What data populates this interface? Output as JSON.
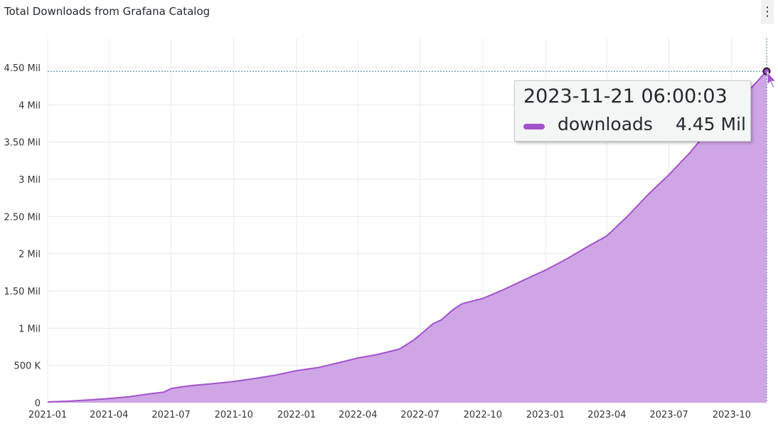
{
  "panel": {
    "title": "Total Downloads from Grafana Catalog",
    "menu_icon": "vertical-ellipsis-icon"
  },
  "tooltip": {
    "timestamp": "2023-11-21 06:00:03",
    "series_name": "downloads",
    "value_label": "4.45 Mil"
  },
  "colors": {
    "series": "#a352cc",
    "fill": "#cfa5e6",
    "grid": "#e9eaeb",
    "crosshair": "#3a7d8c"
  },
  "chart_data": {
    "type": "area",
    "title": "Total Downloads from Grafana Catalog",
    "xlabel": "",
    "ylabel": "",
    "x_ticks": [
      "2021-01",
      "2021-04",
      "2021-07",
      "2021-10",
      "2022-01",
      "2022-04",
      "2022-07",
      "2022-10",
      "2023-01",
      "2023-04",
      "2023-07",
      "2023-10"
    ],
    "y_ticks": [
      {
        "value": 0,
        "label": "0"
      },
      {
        "value": 500000,
        "label": "500 K"
      },
      {
        "value": 1000000,
        "label": "1 Mil"
      },
      {
        "value": 1500000,
        "label": "1.50 Mil"
      },
      {
        "value": 2000000,
        "label": "2 Mil"
      },
      {
        "value": 2500000,
        "label": "2.50 Mil"
      },
      {
        "value": 3000000,
        "label": "3 Mil"
      },
      {
        "value": 3500000,
        "label": "3.50 Mil"
      },
      {
        "value": 4000000,
        "label": "4 Mil"
      },
      {
        "value": 4500000,
        "label": "4.50 Mil"
      }
    ],
    "ylim": [
      0,
      4500000
    ],
    "xlim": [
      "2021-01-01",
      "2023-11-21"
    ],
    "grid": true,
    "series": [
      {
        "name": "downloads",
        "points": [
          [
            "2021-01-01",
            10000
          ],
          [
            "2021-02-01",
            20000
          ],
          [
            "2021-03-01",
            35000
          ],
          [
            "2021-04-01",
            55000
          ],
          [
            "2021-05-01",
            80000
          ],
          [
            "2021-06-01",
            120000
          ],
          [
            "2021-06-20",
            140000
          ],
          [
            "2021-07-01",
            190000
          ],
          [
            "2021-07-15",
            210000
          ],
          [
            "2021-08-01",
            230000
          ],
          [
            "2021-09-01",
            255000
          ],
          [
            "2021-10-01",
            285000
          ],
          [
            "2021-11-01",
            325000
          ],
          [
            "2021-12-01",
            370000
          ],
          [
            "2022-01-01",
            430000
          ],
          [
            "2022-02-01",
            470000
          ],
          [
            "2022-03-01",
            530000
          ],
          [
            "2022-04-01",
            600000
          ],
          [
            "2022-05-01",
            650000
          ],
          [
            "2022-06-01",
            720000
          ],
          [
            "2022-06-20",
            830000
          ],
          [
            "2022-07-01",
            910000
          ],
          [
            "2022-07-20",
            1060000
          ],
          [
            "2022-08-01",
            1110000
          ],
          [
            "2022-08-20",
            1260000
          ],
          [
            "2022-09-01",
            1330000
          ],
          [
            "2022-10-01",
            1400000
          ],
          [
            "2022-11-01",
            1520000
          ],
          [
            "2022-12-01",
            1650000
          ],
          [
            "2023-01-01",
            1780000
          ],
          [
            "2023-02-01",
            1930000
          ],
          [
            "2023-03-01",
            2080000
          ],
          [
            "2023-04-01",
            2240000
          ],
          [
            "2023-05-01",
            2500000
          ],
          [
            "2023-06-01",
            2800000
          ],
          [
            "2023-07-01",
            3060000
          ],
          [
            "2023-08-01",
            3360000
          ],
          [
            "2023-09-01",
            3700000
          ],
          [
            "2023-10-01",
            4000000
          ],
          [
            "2023-11-01",
            4250000
          ],
          [
            "2023-11-21",
            4450000
          ]
        ]
      }
    ],
    "hover": {
      "x": "2023-11-21 06:00:03",
      "y": 4450000
    }
  }
}
